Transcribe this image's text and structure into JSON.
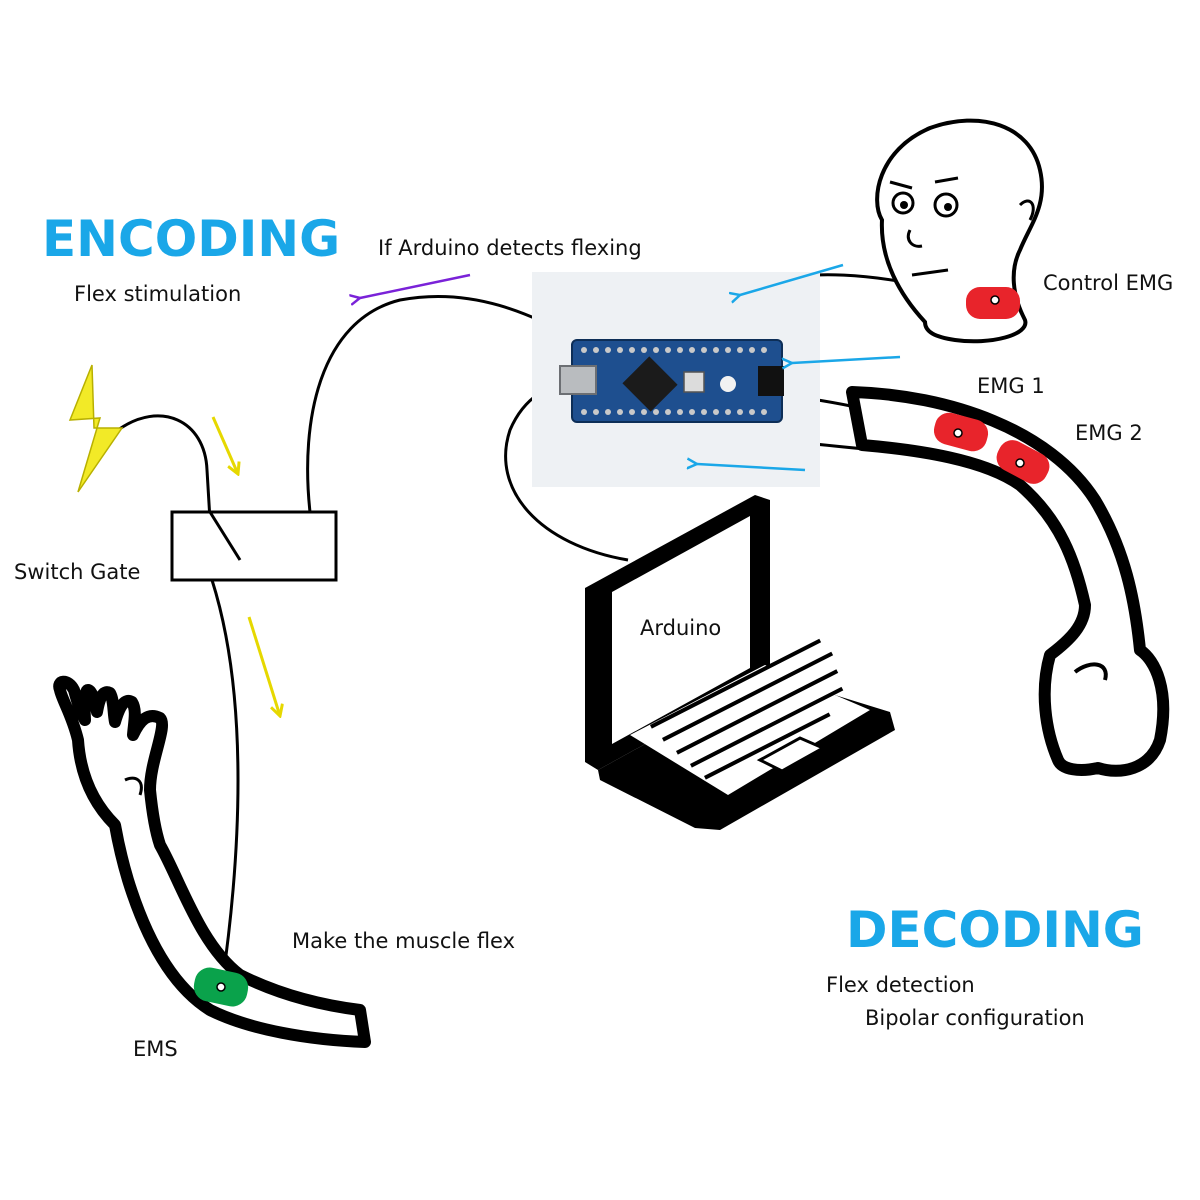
{
  "sections": {
    "encoding": {
      "title": "ENCODING",
      "subtitle": "Flex stimulation"
    },
    "decoding": {
      "title": "DECODING",
      "subtitle_1": "Flex detection",
      "subtitle_2": "Bipolar configuration"
    }
  },
  "labels": {
    "if_arduino": "If Arduino detects flexing",
    "control_emg": "Control EMG",
    "emg1": "EMG 1",
    "emg2": "EMG 2",
    "switch_gate": "Switch Gate",
    "arduino": "Arduino",
    "make_flex": "Make the muscle flex",
    "ems": "EMS"
  },
  "colors": {
    "title": "#1aa7e8",
    "arrow_blue": "#1aa7e8",
    "arrow_purple": "#7a22d8",
    "arrow_yellow": "#e6d800",
    "lightning": "#f2ea27",
    "emg_pad": "#e8242b",
    "ems_pad": "#0aa24b",
    "board": "#1e4f8f"
  },
  "icons": {
    "power": "lightning-bolt-icon",
    "controller": "arduino-nano-board",
    "computer": "laptop-icon"
  }
}
